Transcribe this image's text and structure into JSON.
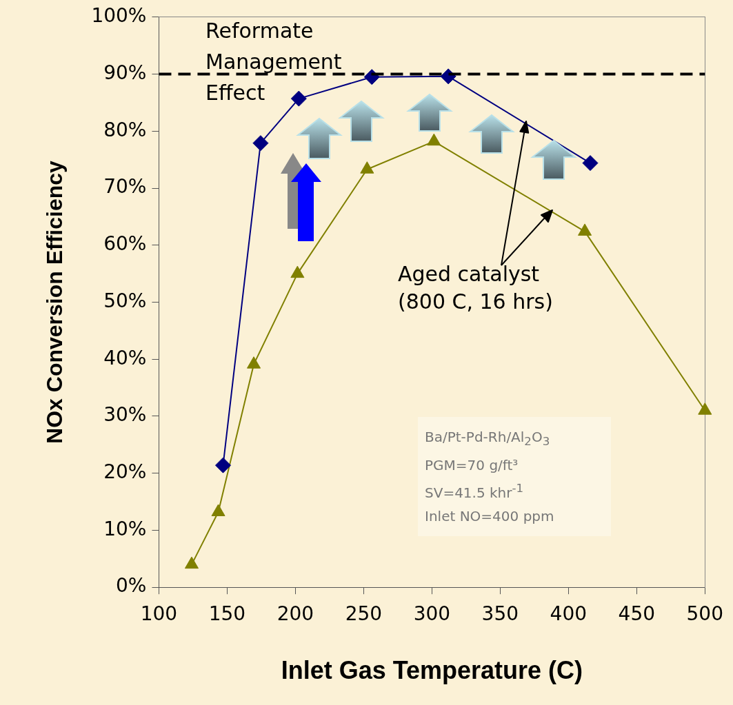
{
  "chart_data": {
    "type": "line",
    "xlabel": "Inlet Gas Temperature (C)",
    "ylabel": "NOx Conversion Efficiency",
    "xlim": [
      100,
      500
    ],
    "xticks": [
      100,
      150,
      200,
      250,
      300,
      350,
      400,
      450,
      500
    ],
    "ylim": [
      0,
      100
    ],
    "yticks": [
      {
        "value": 0,
        "label": "0%"
      },
      {
        "value": 10,
        "label": "10%"
      },
      {
        "value": 20,
        "label": "20%"
      },
      {
        "value": 30,
        "label": "30%"
      },
      {
        "value": 40,
        "label": "40%"
      },
      {
        "value": 50,
        "label": "50%"
      },
      {
        "value": 60,
        "label": "60%"
      },
      {
        "value": 70,
        "label": "70%"
      },
      {
        "value": 80,
        "label": "80%"
      },
      {
        "value": 90,
        "label": "90%"
      },
      {
        "value": 100,
        "label": "100%"
      }
    ],
    "grid": false,
    "legend": false,
    "line_style": "solid",
    "series": [
      {
        "color": "#000080",
        "marker": "diamond",
        "x": [
          147,
          174.5,
          202.5,
          256,
          312,
          416
        ],
        "values": [
          21.4,
          77.9,
          85.7,
          89.5,
          89.6,
          74.4
        ]
      },
      {
        "color": "#808000",
        "marker": "triangle",
        "x": [
          124,
          143.5,
          169.5,
          201.5,
          252.5,
          301.5,
          412,
          500
        ],
        "values": [
          4.0,
          13.2,
          39.1,
          55.0,
          73.3,
          78.2,
          62.4,
          31
        ]
      }
    ],
    "ref_lines": [
      {
        "axis": "y",
        "value": 90,
        "color": "#000000",
        "line_style": "dashed"
      }
    ],
    "annotations": [
      "Reformate Management Effect",
      "Aged catalyst (800 C, 16 hrs)",
      "Ba/Pt-Pd-Rh/Al$_{2}$O$_{3}$",
      "PGM=70 g/ft³",
      "SV=41.5 khr$^{-1}$",
      "Inlet NO=400 ppm"
    ]
  }
}
